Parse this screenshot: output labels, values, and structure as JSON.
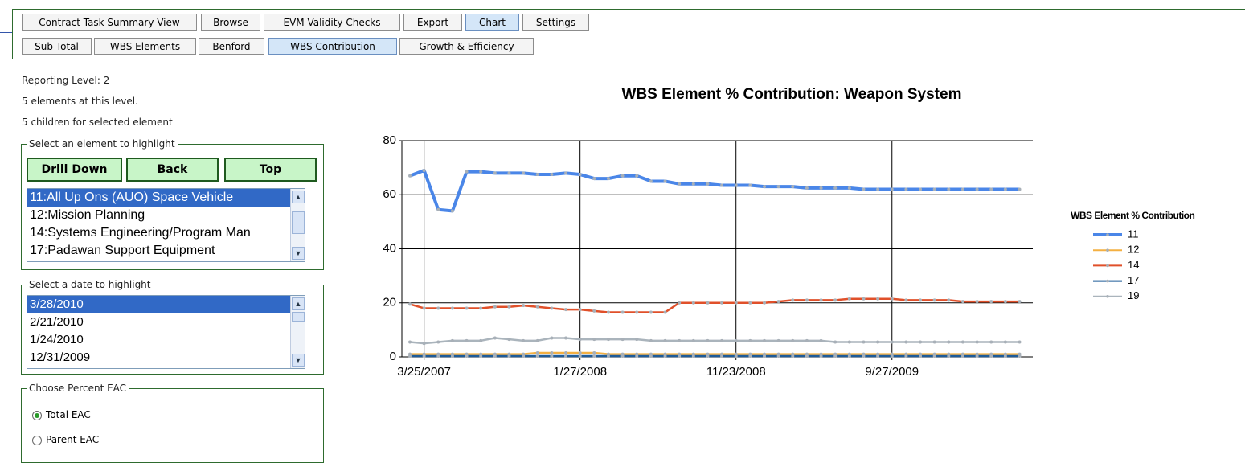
{
  "tabs_row1": [
    "Contract Task Summary View",
    "Browse",
    "EVM Validity Checks",
    "Export",
    "Chart",
    "Settings"
  ],
  "tabs_row2": [
    "Sub Total",
    "WBS Elements",
    "Benford",
    "WBS Contribution",
    "Growth & Efficiency"
  ],
  "info": [
    "Reporting Level: 2",
    "5 elements at this level.",
    "5 children for selected element"
  ],
  "element_panel": {
    "legend": "Select an element to highlight",
    "buttons": [
      "Drill Down",
      "Back",
      "Top"
    ],
    "items": [
      "11:All Up Ons (AUO) Space Vehicle",
      "12:Mission Planning",
      "14:Systems Engineering/Program Man",
      "17:Padawan Support Equipment"
    ]
  },
  "date_panel": {
    "legend": "Select a date to highlight",
    "items": [
      "3/28/2010",
      "2/21/2010",
      "1/24/2010",
      "12/31/2009"
    ]
  },
  "eac_panel": {
    "legend": "Choose Percent EAC",
    "options": [
      "Total EAC",
      "Parent EAC"
    ]
  },
  "chart_data": {
    "type": "line",
    "title": "WBS Element % Contribution: Weapon System",
    "legend_title": "WBS Element % Contribution",
    "categories": [
      null,
      "3/25/2007",
      null,
      null,
      null,
      null,
      null,
      null,
      null,
      null,
      null,
      null,
      "1/27/2008",
      null,
      null,
      null,
      null,
      null,
      null,
      null,
      null,
      null,
      null,
      "11/23/2008",
      null,
      null,
      null,
      null,
      null,
      null,
      null,
      null,
      null,
      null,
      "9/27/2009",
      null,
      null,
      null,
      null,
      null,
      null,
      null,
      null,
      null
    ],
    "ylim": [
      0,
      80
    ],
    "yticks": [
      0,
      20,
      40,
      60,
      80
    ],
    "grid": true,
    "series": [
      {
        "name": "11",
        "color": "#4a86e8",
        "values": [
          67,
          69,
          54.5,
          54,
          68.5,
          68.5,
          68,
          68,
          68,
          67.5,
          67.5,
          68,
          67.5,
          66,
          66,
          67,
          67,
          65,
          65,
          64,
          64,
          64,
          63.5,
          63.5,
          63.5,
          63,
          63,
          63,
          62.5,
          62.5,
          62.5,
          62.5,
          62,
          62,
          62,
          62,
          62,
          62,
          62,
          62,
          62,
          62,
          62,
          62
        ]
      },
      {
        "name": "12",
        "color": "#f4b042",
        "values": [
          1,
          1,
          1,
          1,
          1,
          1,
          1,
          1,
          1,
          1.5,
          1.5,
          1.5,
          1.5,
          1.5,
          1,
          1,
          1,
          1,
          1,
          1,
          1,
          1,
          1,
          1,
          1,
          1,
          1,
          1,
          1,
          1,
          1,
          1,
          1,
          1,
          1,
          1,
          1,
          1,
          1,
          1,
          1,
          1,
          1,
          1
        ]
      },
      {
        "name": "14",
        "color": "#e0502a",
        "values": [
          19.5,
          18,
          18,
          18,
          18,
          18,
          18.5,
          18.5,
          19,
          18.5,
          18,
          17.5,
          17.5,
          17,
          16.5,
          16.5,
          16.5,
          16.5,
          16.5,
          20,
          20,
          20,
          20,
          20,
          20,
          20,
          20.5,
          21,
          21,
          21,
          21,
          21.5,
          21.5,
          21.5,
          21.5,
          21,
          21,
          21,
          21,
          20.5,
          20.5,
          20.5,
          20.5,
          20.5
        ]
      },
      {
        "name": "17",
        "color": "#1f5c99",
        "values": [
          0.3,
          0.3,
          0.3,
          0.3,
          0.3,
          0.3,
          0.3,
          0.3,
          0.3,
          0.3,
          0.3,
          0.3,
          0.3,
          0.3,
          0.3,
          0.3,
          0.3,
          0.3,
          0.3,
          0.3,
          0.3,
          0.3,
          0.3,
          0.3,
          0.3,
          0.3,
          0.3,
          0.3,
          0.3,
          0.3,
          0.3,
          0.3,
          0.3,
          0.3,
          0.3,
          0.3,
          0.3,
          0.3,
          0.3,
          0.3,
          0.3,
          0.3,
          0.3,
          0.3
        ]
      },
      {
        "name": "19",
        "color": "#aab4bc",
        "values": [
          5.5,
          5,
          5.5,
          6,
          6,
          6,
          7,
          6.5,
          6,
          6,
          7,
          7,
          6.5,
          6.5,
          6.5,
          6.5,
          6.5,
          6,
          6,
          6,
          6,
          6,
          6,
          6,
          6,
          6,
          6,
          6,
          6,
          6,
          5.5,
          5.5,
          5.5,
          5.5,
          5.5,
          5.5,
          5.5,
          5.5,
          5.5,
          5.5,
          5.5,
          5.5,
          5.5,
          5.5
        ]
      }
    ]
  }
}
